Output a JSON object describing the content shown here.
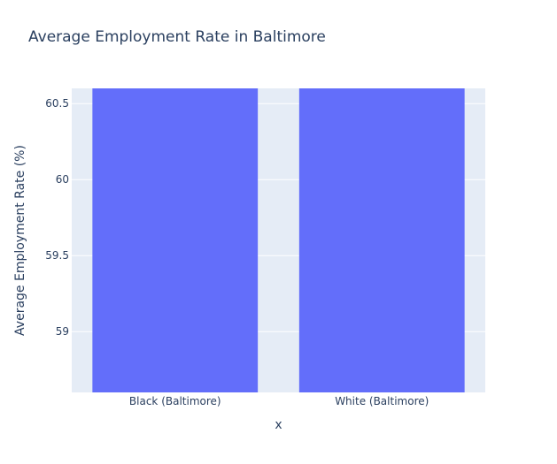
{
  "chart_data": {
    "type": "bar",
    "title": "Average Employment Rate in Baltimore",
    "xlabel": "x",
    "ylabel": "Average Employment Rate (%)",
    "categories": [
      "Black (Baltimore)",
      "White (Baltimore)"
    ],
    "values": [
      60.6,
      60.6
    ],
    "ylim": [
      58.6,
      60.6
    ],
    "yticks": [
      59,
      59.5,
      60,
      60.5
    ],
    "ytick_labels": [
      "59",
      "59.5",
      "60",
      "60.5"
    ],
    "grid": true,
    "legend": "none",
    "colors": {
      "bar": "#636efa",
      "plot_background": "#e5ecf6",
      "gridline": "#ffffff",
      "text": "#2a3f5f"
    }
  }
}
